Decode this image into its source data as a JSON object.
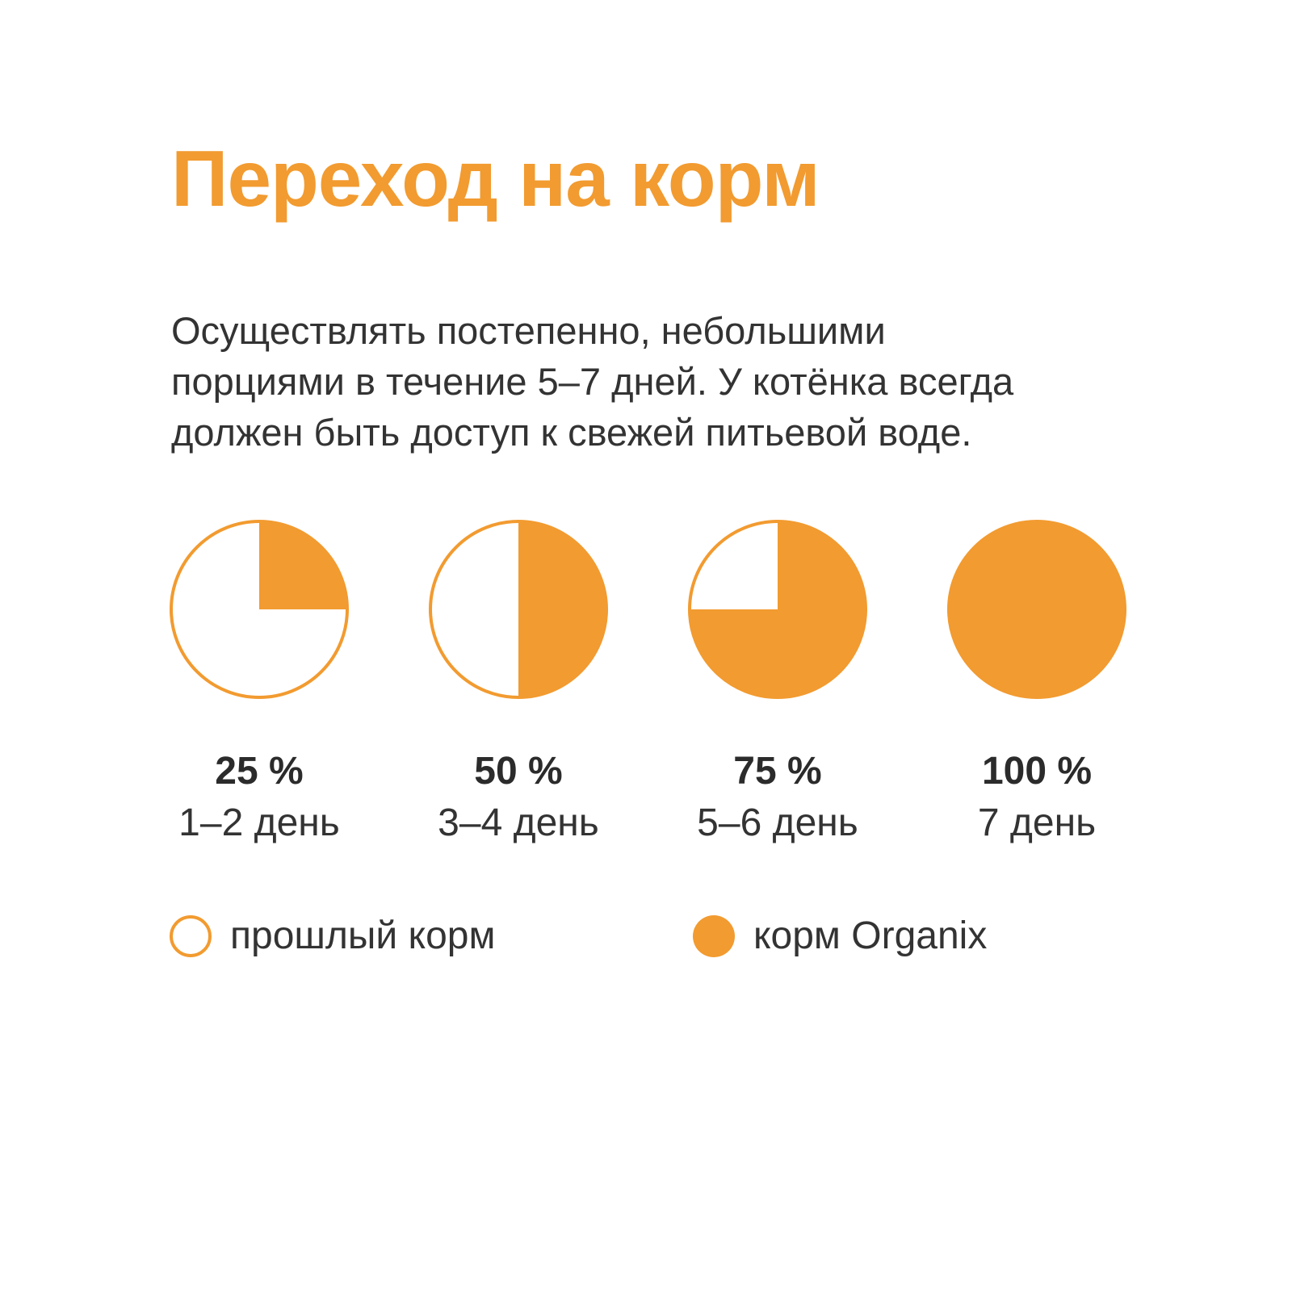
{
  "title": "Переход на корм",
  "description_lines": [
    "Осуществлять постепенно, небольшими",
    "порциями в течение 5–7 дней. У котёнка всегда",
    "должен быть доступ к свежей питьевой воде."
  ],
  "colors": {
    "accent": "#F29B30",
    "text": "#333333",
    "background": "#FFFFFF"
  },
  "stages": [
    {
      "percent_label": "25 %",
      "day_label": "1–2 день",
      "fraction": 0.25
    },
    {
      "percent_label": "50 %",
      "day_label": "3–4 день",
      "fraction": 0.5
    },
    {
      "percent_label": "75 %",
      "day_label": "5–6 день",
      "fraction": 0.75
    },
    {
      "percent_label": "100 %",
      "day_label": "7 день",
      "fraction": 1.0
    }
  ],
  "legend": [
    {
      "label": "прошлый корм",
      "style": "outline"
    },
    {
      "label": "корм Organix",
      "style": "filled"
    }
  ]
}
